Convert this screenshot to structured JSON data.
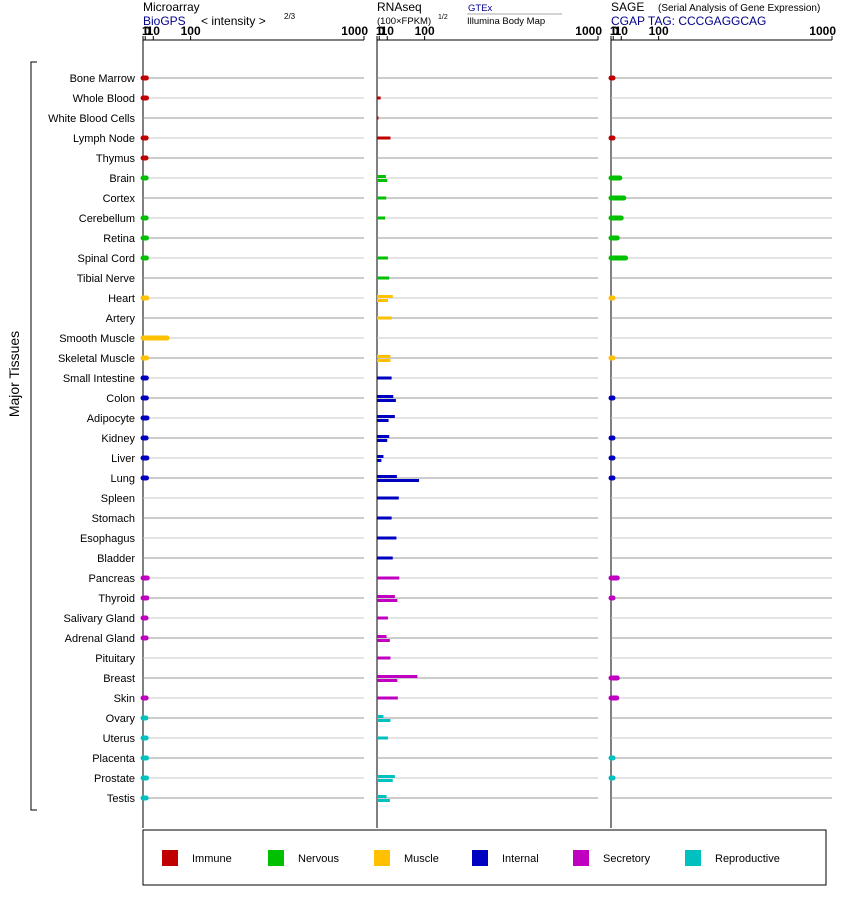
{
  "chart_data": {
    "type": "bar",
    "y_axis_label": "Major Tissues",
    "tissues": [
      "Bone Marrow",
      "Whole Blood",
      "White Blood Cells",
      "Lymph Node",
      "Thymus",
      "Brain",
      "Cortex",
      "Cerebellum",
      "Retina",
      "Spinal Cord",
      "Tibial Nerve",
      "Heart",
      "Artery",
      "Smooth Muscle",
      "Skeletal Muscle",
      "Small Intestine",
      "Colon",
      "Adipocyte",
      "Kidney",
      "Liver",
      "Lung",
      "Spleen",
      "Stomach",
      "Esophagus",
      "Bladder",
      "Pancreas",
      "Thyroid",
      "Salivary Gland",
      "Adrenal Gland",
      "Pituitary",
      "Breast",
      "Skin",
      "Ovary",
      "Uterus",
      "Placenta",
      "Prostate",
      "Testis"
    ],
    "tissue_groups": [
      "Immune",
      "Immune",
      "Immune",
      "Immune",
      "Immune",
      "Nervous",
      "Nervous",
      "Nervous",
      "Nervous",
      "Nervous",
      "Nervous",
      "Muscle",
      "Muscle",
      "Muscle",
      "Muscle",
      "Internal",
      "Internal",
      "Internal",
      "Internal",
      "Internal",
      "Internal",
      "Internal",
      "Internal",
      "Internal",
      "Internal",
      "Secretory",
      "Secretory",
      "Secretory",
      "Secretory",
      "Secretory",
      "Secretory",
      "Secretory",
      "Reproductive",
      "Reproductive",
      "Reproductive",
      "Reproductive",
      "Reproductive"
    ],
    "legend": [
      {
        "name": "Immune",
        "color": "#c00000"
      },
      {
        "name": "Nervous",
        "color": "#00c000"
      },
      {
        "name": "Muscle",
        "color": "#ffc000"
      },
      {
        "name": "Internal",
        "color": "#0000c0"
      },
      {
        "name": "Secretory",
        "color": "#c000c0"
      },
      {
        "name": "Reproductive",
        "color": "#00c0c0"
      }
    ],
    "tick_labels": [
      "0",
      "1",
      "10",
      "100",
      "1000"
    ],
    "xlim": [
      0,
      1000
    ],
    "x_scale": "power 2/3 (label positions 0, 1, 10, 100, 1000)",
    "panels": [
      {
        "title": "Microarray",
        "subtitle": "< intensity >",
        "subtitle_exp": "2/3",
        "source": "BioGPS",
        "values": [
          1.9,
          2.0,
          null,
          1.7,
          1.6,
          1.7,
          null,
          1.7,
          2.0,
          1.9,
          null,
          2.2,
          null,
          36,
          2.0,
          1.9,
          1.9,
          2.4,
          1.7,
          2.3,
          2.0,
          null,
          null,
          null,
          null,
          2.7,
          2.3,
          1.6,
          1.7,
          null,
          null,
          1.7,
          1.5,
          1.7,
          2.0,
          2.0,
          1.7
        ]
      },
      {
        "title": "RNAseq",
        "subtitle": "(100×FPKM)",
        "subtitle_exp": "1/2",
        "sources": [
          "GTEx",
          "Illumina Body Map"
        ],
        "series": [
          {
            "name": "GTEx",
            "values": [
              null,
              2.1,
              0.1,
              15,
              null,
              8,
              null,
              null,
              null,
              null,
              13,
              19,
              17,
              null,
              15,
              17,
              20,
              23,
              13,
              5,
              27,
              31,
              17,
              26,
              19,
              32,
              23,
              11,
              9,
              15,
              78,
              29,
              5,
              11,
              null,
              23,
              9
            ]
          },
          {
            "name": "Illumina Body Map",
            "values": [
              null,
              null,
              null,
              null,
              null,
              10,
              8.5,
              7,
              null,
              11,
              null,
              11,
              null,
              null,
              15,
              null,
              25,
              12,
              10,
              2.8,
              83,
              null,
              null,
              null,
              null,
              null,
              28,
              null,
              14,
              null,
              28,
              null,
              15,
              null,
              null,
              19,
              14
            ]
          }
        ]
      },
      {
        "title": "SAGE",
        "note": "(Serial Analysis of Gene Expression)",
        "source": "CGAP TAG: CCCGAGGCAG",
        "values": [
          0.1,
          null,
          null,
          0.1,
          null,
          8,
          14,
          10,
          4.8,
          17,
          null,
          0.05,
          null,
          null,
          0.05,
          null,
          0.1,
          null,
          0.1,
          0.1,
          0.1,
          null,
          null,
          null,
          null,
          4.8,
          0.1,
          null,
          null,
          null,
          4.8,
          4.2,
          null,
          null,
          0.1,
          0.1,
          null
        ]
      }
    ]
  }
}
